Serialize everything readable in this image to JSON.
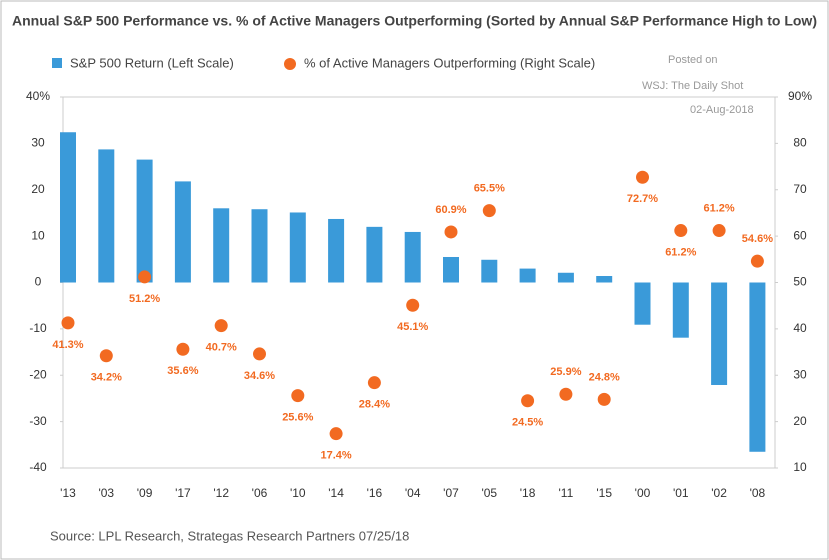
{
  "chart_data": {
    "type": "bar_dot",
    "title": "Annual S&P 500 Performance vs. % of Active Managers Outperforming (Sorted by Annual S&P Performance High to Low)",
    "watermark": [
      "Posted on",
      "WSJ: The Daily Shot",
      "02-Aug-2018"
    ],
    "source": "Source: LPL Research, Strategas Research Partners  07/25/18",
    "categories": [
      "'13",
      "'03",
      "'09",
      "'17",
      "'12",
      "'06",
      "'10",
      "'14",
      "'16",
      "'04",
      "'07",
      "'05",
      "'18",
      "'11",
      "'15",
      "'00",
      "'01",
      "'02",
      "'08"
    ],
    "series": [
      {
        "name": "S&P 500 Return (Left Scale)",
        "color": "#3a9ad9",
        "values": [
          32.4,
          28.7,
          26.5,
          21.8,
          16.0,
          15.8,
          15.1,
          13.7,
          12.0,
          10.9,
          5.5,
          4.9,
          3.0,
          2.1,
          1.4,
          -9.1,
          -11.9,
          -22.1,
          -36.5
        ]
      },
      {
        "name": "% of Active Managers Outperforming (Right Scale)",
        "color": "#f26a21",
        "axis": "y2",
        "values": [
          41.3,
          34.2,
          51.2,
          35.6,
          40.7,
          34.6,
          25.6,
          17.4,
          28.4,
          45.1,
          60.9,
          65.5,
          24.5,
          25.9,
          24.8,
          72.7,
          61.2,
          61.2,
          54.6
        ],
        "value_labels": [
          "41.3%",
          "34.2%",
          "51.2%",
          "35.6%",
          "40.7%",
          "34.6%",
          "25.6%",
          "17.4%",
          "28.4%",
          "45.1%",
          "60.9%",
          "65.5%",
          "24.5%",
          "25.9%",
          "24.8%",
          "72.7%",
          "61.2%",
          "61.2%",
          "54.6%"
        ]
      }
    ],
    "ylim": [
      -40,
      40
    ],
    "yticks": [
      {
        "value": 40,
        "label": "40%"
      },
      30,
      20,
      10,
      0,
      -10,
      -20,
      -30,
      -40
    ],
    "y2lim": [
      10,
      90
    ],
    "y2ticks": [
      {
        "value": 90,
        "label": "90%"
      },
      80,
      70,
      60,
      50,
      40,
      30,
      20,
      10
    ]
  }
}
